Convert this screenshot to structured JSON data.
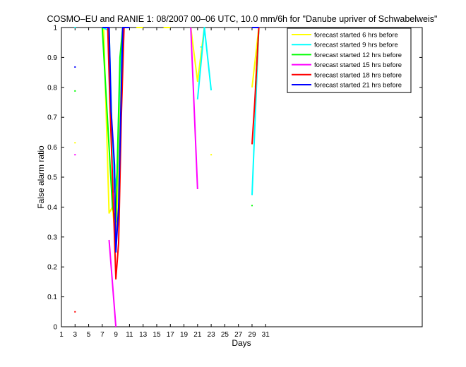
{
  "chart_data": {
    "type": "line",
    "title": "COSMO–EU and RANIE 1: 08/2007 00–06 UTC, 10.0 mm/6h for \"Danube upriver of Schwabelweis\"",
    "xlabel": "Days",
    "ylabel": "False alarm ratio",
    "xlim": [
      1,
      54
    ],
    "ylim": [
      0,
      1
    ],
    "xticks": [
      "1",
      "3",
      "5",
      "7",
      "9",
      "11",
      "13",
      "15",
      "17",
      "19",
      "21",
      "23",
      "25",
      "27",
      "29",
      "31"
    ],
    "yticks": [
      "0",
      "0.1",
      "0.2",
      "0.3",
      "0.4",
      "0.5",
      "0.6",
      "0.7",
      "0.8",
      "0.9",
      "1"
    ],
    "grid": false,
    "legend_position": "top-right",
    "series": [
      {
        "name": "forecast started 6 hrs before",
        "color": "#ffff00",
        "segments": [
          [
            [
              7.2,
              1.0
            ],
            [
              8.0,
              0.38
            ],
            [
              8.5,
              0.4
            ],
            [
              9.0,
              0.28
            ],
            [
              9.4,
              0.55
            ],
            [
              10.0,
              1.0
            ],
            [
              10.5,
              1.0
            ]
          ],
          [
            [
              12.0,
              1.0
            ],
            [
              13.0,
              1.0
            ]
          ],
          [
            [
              16.0,
              1.0
            ],
            [
              17.0,
              1.0
            ]
          ],
          [
            [
              20.0,
              1.0
            ],
            [
              21.0,
              0.82
            ],
            [
              22.0,
              1.0
            ]
          ],
          [
            [
              29.0,
              0.8
            ],
            [
              30.0,
              1.0
            ]
          ]
        ],
        "points": [
          [
            3,
            0.615
          ],
          [
            23,
            0.575
          ]
        ]
      },
      {
        "name": "forecast started 9 hrs before",
        "color": "#00ffff",
        "segments": [
          [
            [
              7.0,
              1.0
            ],
            [
              8.0,
              0.99
            ],
            [
              8.4,
              0.68
            ],
            [
              8.8,
              0.45
            ],
            [
              9.2,
              0.52
            ],
            [
              9.6,
              0.85
            ],
            [
              10.0,
              1.0
            ],
            [
              10.5,
              1.0
            ]
          ],
          [
            [
              21.0,
              0.76
            ],
            [
              22.0,
              1.0
            ],
            [
              23.0,
              0.79
            ]
          ],
          [
            [
              29.0,
              0.44
            ],
            [
              30.0,
              1.0
            ]
          ]
        ],
        "points": [
          [
            3,
            1.0
          ],
          [
            21.5,
            0.935
          ]
        ]
      },
      {
        "name": "forecast started 12 hrs before",
        "color": "#00ff00",
        "segments": [
          [
            [
              7.0,
              1.0
            ],
            [
              8.0,
              0.6
            ],
            [
              8.5,
              0.4
            ],
            [
              9.0,
              0.35
            ],
            [
              9.6,
              0.9
            ],
            [
              10.0,
              1.0
            ]
          ],
          [
            [
              29.5,
              0.8
            ],
            [
              30.0,
              1.0
            ]
          ]
        ],
        "points": [
          [
            3,
            0.788
          ],
          [
            29,
            0.405
          ]
        ]
      },
      {
        "name": "forecast started 15 hrs before",
        "color": "#ff00ff",
        "segments": [
          [
            [
              8.0,
              0.29
            ],
            [
              9.0,
              0.0
            ]
          ],
          [
            [
              20.0,
              1.0
            ],
            [
              21.0,
              0.46
            ]
          ],
          [
            [
              29.0,
              1.0
            ],
            [
              30.0,
              1.0
            ]
          ]
        ],
        "points": [
          [
            3,
            0.575
          ]
        ]
      },
      {
        "name": "forecast started 18 hrs before",
        "color": "#ff0000",
        "segments": [
          [
            [
              7.8,
              1.0
            ],
            [
              8.1,
              0.76
            ],
            [
              8.5,
              0.5
            ],
            [
              9.0,
              0.16
            ],
            [
              9.4,
              0.28
            ],
            [
              9.8,
              0.7
            ],
            [
              10.2,
              1.0
            ]
          ],
          [
            [
              29.0,
              0.61
            ],
            [
              29.4,
              0.75
            ],
            [
              30.0,
              1.0
            ]
          ]
        ],
        "points": [
          [
            3,
            0.05
          ]
        ]
      },
      {
        "name": "forecast started 21 hrs before",
        "color": "#0000ff",
        "segments": [
          [
            [
              7.0,
              1.0
            ],
            [
              8.0,
              1.0
            ],
            [
              8.3,
              0.72
            ],
            [
              8.8,
              0.54
            ],
            [
              9.0,
              0.25
            ],
            [
              9.4,
              0.4
            ],
            [
              10.0,
              1.0
            ],
            [
              11.0,
              1.0
            ]
          ],
          [
            [
              29.0,
              1.0
            ],
            [
              30.0,
              1.0
            ]
          ]
        ],
        "points": [
          [
            3,
            0.868
          ]
        ]
      }
    ]
  }
}
